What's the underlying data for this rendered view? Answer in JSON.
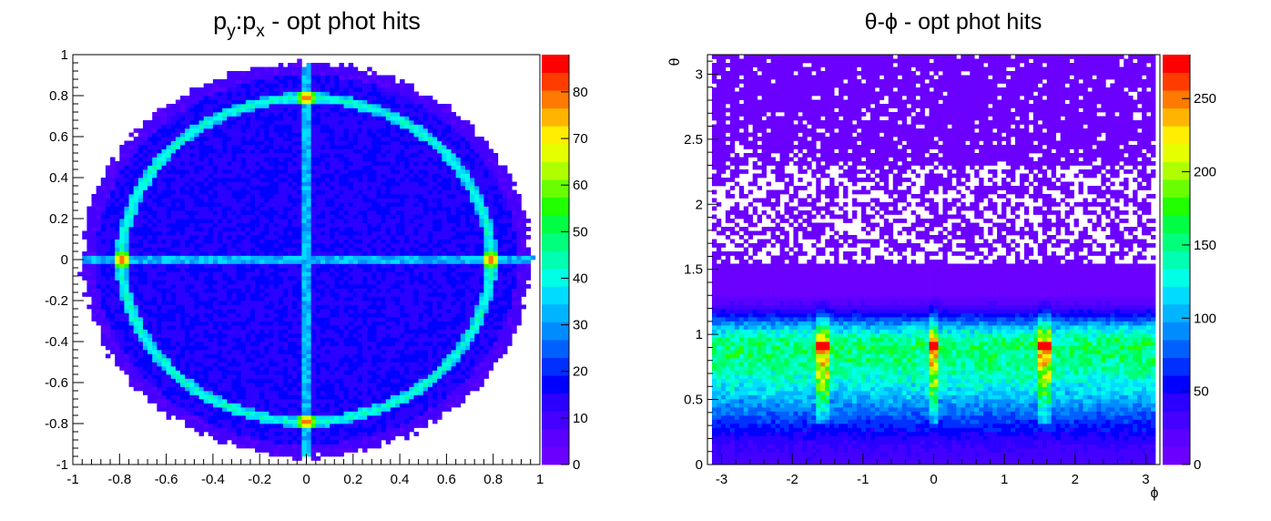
{
  "chart_data": [
    {
      "type": "heatmap",
      "title_main": "p",
      "title_sub1": "y",
      "title_sep": ":p",
      "title_sub2": "x",
      "title_rest": " - opt phot hits",
      "xlabel": "",
      "ylabel": "",
      "xlim": [
        -1,
        1
      ],
      "ylim": [
        -1,
        1
      ],
      "nbins": 100,
      "x_ticks": [
        -1,
        -0.8,
        -0.6,
        -0.4,
        -0.2,
        0,
        0.2,
        0.4,
        0.6,
        0.8,
        1
      ],
      "x_tick_labels": [
        "-1",
        "-0.8",
        "-0.6",
        "-0.4",
        "-0.2",
        "0",
        "0.2",
        "0.4",
        "0.6",
        "0.8",
        "1"
      ],
      "y_ticks": [
        -1,
        -0.8,
        -0.6,
        -0.4,
        -0.2,
        0,
        0.2,
        0.4,
        0.6,
        0.8,
        1
      ],
      "y_tick_labels": [
        "-1",
        "-0.8",
        "-0.6",
        "-0.4",
        "-0.2",
        "0",
        "0.2",
        "0.4",
        "0.6",
        "0.8",
        "1"
      ],
      "zlim": [
        0,
        88
      ],
      "z_ticks": [
        0,
        10,
        20,
        30,
        40,
        50,
        60,
        70,
        80
      ],
      "z_tick_labels": [
        "0",
        "10",
        "20",
        "30",
        "40",
        "50",
        "60",
        "70",
        "80"
      ],
      "features": {
        "support_radius": 0.96,
        "background_counts": [
          12,
          18
        ],
        "edge_band": {
          "from_radius": 0.9,
          "counts": 7
        },
        "ring": {
          "radius": 0.79,
          "counts": 40
        },
        "cross_arms": {
          "half_width": 0.02,
          "counts": 34
        },
        "hot_spots": [
          {
            "x": 0,
            "y": 0.79,
            "counts": 88
          },
          {
            "x": 0,
            "y": -0.79,
            "counts": 88
          },
          {
            "x": 0.79,
            "y": 0,
            "counts": 88
          },
          {
            "x": -0.79,
            "y": 0,
            "counts": 88
          }
        ]
      }
    },
    {
      "type": "heatmap",
      "title_text": "θ-ϕ - opt phot hits",
      "xlabel": "ϕ",
      "ylabel": "θ",
      "xlim": [
        -3.2,
        3.2
      ],
      "ylim": [
        0,
        3.15
      ],
      "nbins_x": 100,
      "nbins_y": 100,
      "x_ticks": [
        -3,
        -2,
        -1,
        0,
        1,
        2,
        3
      ],
      "x_tick_labels": [
        "-3",
        "-2",
        "-1",
        "0",
        "1",
        "2",
        "3"
      ],
      "y_ticks": [
        0,
        0.5,
        1,
        1.5,
        2,
        2.5,
        3
      ],
      "y_tick_labels": [
        "0",
        "0.5",
        "1",
        "1.5",
        "2",
        "2.5",
        "3"
      ],
      "zlim": [
        0,
        280
      ],
      "z_ticks": [
        0,
        50,
        100,
        150,
        200,
        250
      ],
      "z_tick_labels": [
        "0",
        "50",
        "100",
        "150",
        "200",
        "250"
      ],
      "features": {
        "peak_theta": 0.91,
        "peak_counts": 155,
        "hot_phi": [
          -1.57,
          0,
          1.57
        ],
        "hot_counts": 280,
        "sparse_region_theta": [
          1.55,
          3.15
        ],
        "sparse_counts": 1
      }
    }
  ],
  "palette": [
    "#6b00ff",
    "#5b00ff",
    "#4400ff",
    "#2b00ff",
    "#0000ff",
    "#0030ff",
    "#0060ff",
    "#008cff",
    "#00b4ff",
    "#00dcff",
    "#00ffe6",
    "#00ffb0",
    "#00ff7a",
    "#00ff44",
    "#22ff00",
    "#6aff00",
    "#b0ff00",
    "#e6ff00",
    "#ffee00",
    "#ffb400",
    "#ff7a00",
    "#ff3c00",
    "#ff0000"
  ]
}
